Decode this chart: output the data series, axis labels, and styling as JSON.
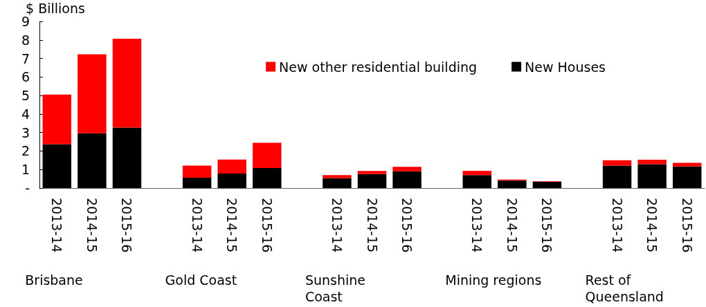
{
  "chart_data": {
    "type": "bar",
    "stacked": true,
    "ylabel": "$ Billions",
    "categories": [
      "2013-14",
      "2014-15",
      "2015-16",
      null,
      "2013-14",
      "2014-15",
      "2015-16",
      null,
      "2013-14",
      "2014-15",
      "2015-16",
      null,
      "2013-14",
      "2014-15",
      "2015-16",
      null,
      "2013-14",
      "2014-15",
      "2015-16"
    ],
    "series": [
      {
        "name": "New Houses",
        "color": "#000000",
        "values": [
          2.37,
          2.96,
          3.27,
          null,
          0.56,
          0.78,
          1.08,
          null,
          0.53,
          0.76,
          0.91,
          null,
          0.7,
          0.4,
          0.34,
          null,
          1.21,
          1.29,
          1.17
        ]
      },
      {
        "name": "New other residential building",
        "color": "#ff0000",
        "values": [
          2.68,
          4.27,
          4.8,
          null,
          0.65,
          0.76,
          1.37,
          null,
          0.17,
          0.16,
          0.24,
          null,
          0.23,
          0.06,
          0.02,
          null,
          0.29,
          0.24,
          0.19
        ]
      }
    ],
    "ylim": [
      0,
      9
    ],
    "yticks": [
      {
        "value": 0,
        "label": "-"
      },
      1,
      2,
      3,
      4,
      5,
      6,
      7,
      8,
      9
    ],
    "grid": false,
    "legend": "top right",
    "annotations": [
      "Brisbane",
      "Gold Coast",
      "Sunshine Coast",
      "Mining regions",
      "Rest of Queensland"
    ]
  }
}
